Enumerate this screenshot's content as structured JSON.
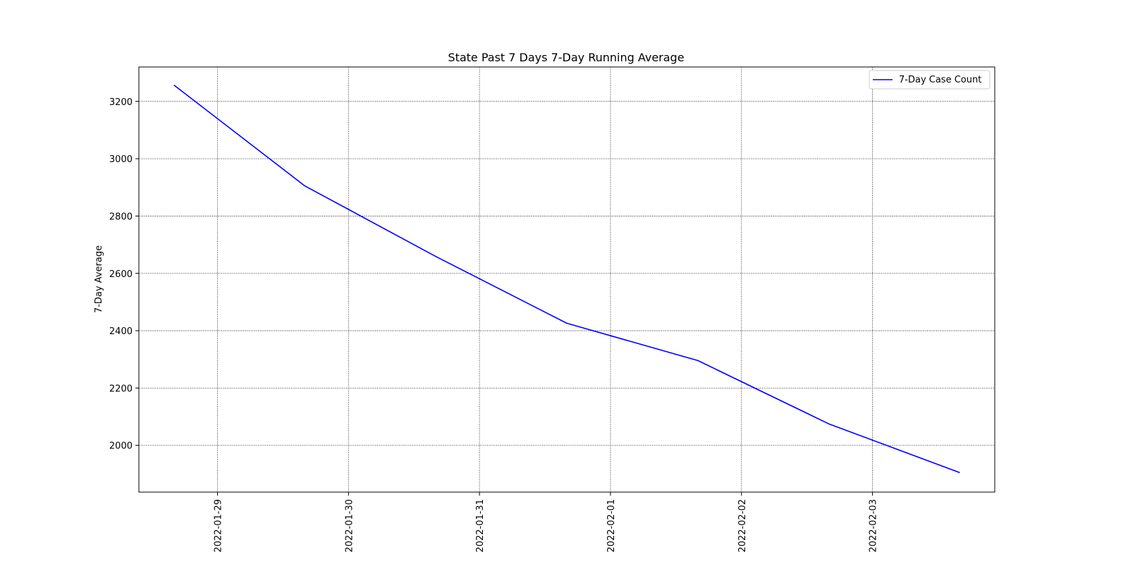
{
  "chart_data": {
    "type": "line",
    "title": "State Past 7 Days 7-Day Running Average",
    "xlabel": "",
    "ylabel": "7-Day Average",
    "x": [
      "2022-01-28 16:00",
      "2022-01-29 16:00",
      "2022-01-30 16:00",
      "2022-01-31 16:00",
      "2022-02-01 16:00",
      "2022-02-02 16:00",
      "2022-02-03 16:00"
    ],
    "xlim": [
      "2022-01-28 09:36",
      "2022-02-03 22:24"
    ],
    "x_ticks": [
      "2022-01-29",
      "2022-01-30",
      "2022-01-31",
      "2022-02-01",
      "2022-02-02",
      "2022-02-03"
    ],
    "y_ticks": [
      2000,
      2200,
      2400,
      2600,
      2800,
      3000,
      3200
    ],
    "ylim": [
      1837,
      3320
    ],
    "grid": true,
    "legend_position": "top-right",
    "series": [
      {
        "name": "7-Day Case Count",
        "color": "#0000ff",
        "values": [
          3257,
          2905,
          2659,
          2426,
          2296,
          2075,
          1905
        ]
      }
    ]
  }
}
